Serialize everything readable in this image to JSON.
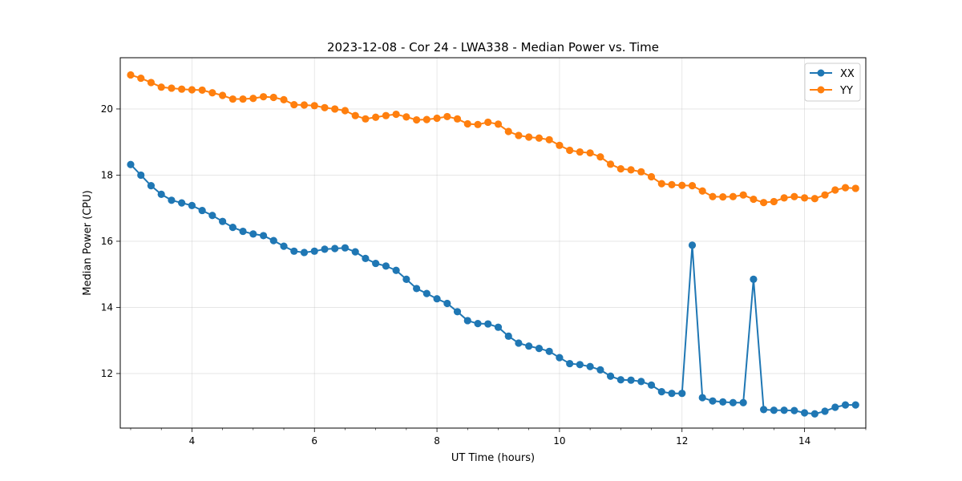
{
  "chart_data": {
    "type": "line",
    "title": "2023-12-08 - Cor 24 - LWA338 - Median Power vs. Time",
    "xlabel": "UT Time (hours)",
    "ylabel": "Median Power (CPU)",
    "xlim": [
      2.83,
      15.0
    ],
    "ylim": [
      10.35,
      21.55
    ],
    "xticks": [
      4,
      6,
      8,
      10,
      12,
      14
    ],
    "yticks": [
      12,
      14,
      16,
      18,
      20
    ],
    "grid": true,
    "legend": "top-right",
    "x": [
      3.0,
      3.167,
      3.333,
      3.5,
      3.667,
      3.833,
      4.0,
      4.167,
      4.333,
      4.5,
      4.667,
      4.833,
      5.0,
      5.167,
      5.333,
      5.5,
      5.667,
      5.833,
      6.0,
      6.167,
      6.333,
      6.5,
      6.667,
      6.833,
      7.0,
      7.167,
      7.333,
      7.5,
      7.667,
      7.833,
      8.0,
      8.167,
      8.333,
      8.5,
      8.667,
      8.833,
      9.0,
      9.167,
      9.333,
      9.5,
      9.667,
      9.833,
      10.0,
      10.167,
      10.333,
      10.5,
      10.667,
      10.833,
      11.0,
      11.167,
      11.333,
      11.5,
      11.667,
      11.833,
      12.0,
      12.167,
      12.333,
      12.5,
      12.667,
      12.833,
      13.0,
      13.167,
      13.333,
      13.5,
      13.667,
      13.833,
      14.0,
      14.167,
      14.333,
      14.5,
      14.667,
      14.833
    ],
    "series": [
      {
        "name": "XX",
        "color": "#1f77b4",
        "values": [
          18.32,
          18.0,
          17.68,
          17.42,
          17.24,
          17.16,
          17.08,
          16.93,
          16.78,
          16.6,
          16.42,
          16.3,
          16.22,
          16.17,
          16.02,
          15.85,
          15.7,
          15.66,
          15.7,
          15.76,
          15.78,
          15.8,
          15.68,
          15.48,
          15.33,
          15.25,
          15.12,
          14.85,
          14.57,
          14.42,
          14.26,
          14.12,
          13.87,
          13.6,
          13.51,
          13.5,
          13.4,
          13.13,
          12.92,
          12.83,
          12.76,
          12.67,
          12.48,
          12.3,
          12.27,
          12.21,
          12.11,
          11.92,
          11.81,
          11.8,
          11.76,
          11.65,
          11.45,
          11.4,
          11.4,
          15.88,
          11.27,
          11.17,
          11.14,
          11.12,
          11.12,
          14.85,
          10.91,
          10.89,
          10.89,
          10.88,
          10.81,
          10.78,
          10.86,
          10.98,
          11.05,
          11.05
        ]
      },
      {
        "name": "YY",
        "color": "#ff7f0e",
        "values": [
          21.03,
          20.93,
          20.8,
          20.66,
          20.63,
          20.6,
          20.58,
          20.57,
          20.49,
          20.41,
          20.3,
          20.3,
          20.32,
          20.37,
          20.35,
          20.28,
          20.13,
          20.12,
          20.1,
          20.04,
          20.0,
          19.95,
          19.8,
          19.7,
          19.75,
          19.8,
          19.84,
          19.76,
          19.67,
          19.68,
          19.72,
          19.77,
          19.7,
          19.55,
          19.53,
          19.6,
          19.54,
          19.32,
          19.2,
          19.15,
          19.12,
          19.07,
          18.9,
          18.75,
          18.7,
          18.67,
          18.55,
          18.33,
          18.19,
          18.16,
          18.1,
          17.95,
          17.74,
          17.71,
          17.69,
          17.68,
          17.52,
          17.35,
          17.34,
          17.35,
          17.4,
          17.27,
          17.17,
          17.2,
          17.31,
          17.35,
          17.31,
          17.29,
          17.4,
          17.55,
          17.62,
          17.6
        ]
      }
    ]
  }
}
